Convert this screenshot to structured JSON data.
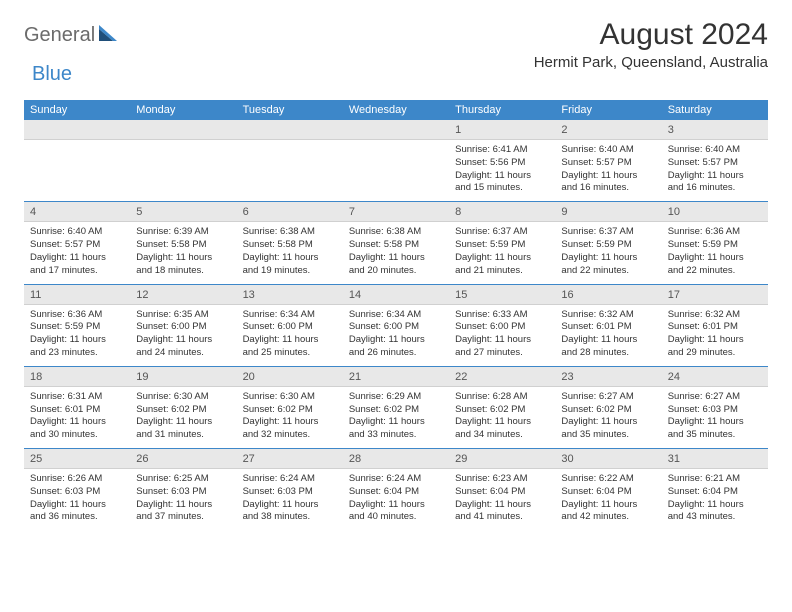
{
  "brand": {
    "part1": "General",
    "part2": "Blue"
  },
  "title": "August 2024",
  "location": "Hermit Park, Queensland, Australia",
  "colors": {
    "accent": "#3d87c9",
    "stripe": "#e8e8e8",
    "text": "#333333",
    "muted": "#6b6b6b",
    "divider": "#3d87c9"
  },
  "weekdays": [
    "Sunday",
    "Monday",
    "Tuesday",
    "Wednesday",
    "Thursday",
    "Friday",
    "Saturday"
  ],
  "weeks": [
    [
      {
        "num": "",
        "lines": []
      },
      {
        "num": "",
        "lines": []
      },
      {
        "num": "",
        "lines": []
      },
      {
        "num": "",
        "lines": []
      },
      {
        "num": "1",
        "lines": [
          "Sunrise: 6:41 AM",
          "Sunset: 5:56 PM",
          "Daylight: 11 hours",
          "and 15 minutes."
        ]
      },
      {
        "num": "2",
        "lines": [
          "Sunrise: 6:40 AM",
          "Sunset: 5:57 PM",
          "Daylight: 11 hours",
          "and 16 minutes."
        ]
      },
      {
        "num": "3",
        "lines": [
          "Sunrise: 6:40 AM",
          "Sunset: 5:57 PM",
          "Daylight: 11 hours",
          "and 16 minutes."
        ]
      }
    ],
    [
      {
        "num": "4",
        "lines": [
          "Sunrise: 6:40 AM",
          "Sunset: 5:57 PM",
          "Daylight: 11 hours",
          "and 17 minutes."
        ]
      },
      {
        "num": "5",
        "lines": [
          "Sunrise: 6:39 AM",
          "Sunset: 5:58 PM",
          "Daylight: 11 hours",
          "and 18 minutes."
        ]
      },
      {
        "num": "6",
        "lines": [
          "Sunrise: 6:38 AM",
          "Sunset: 5:58 PM",
          "Daylight: 11 hours",
          "and 19 minutes."
        ]
      },
      {
        "num": "7",
        "lines": [
          "Sunrise: 6:38 AM",
          "Sunset: 5:58 PM",
          "Daylight: 11 hours",
          "and 20 minutes."
        ]
      },
      {
        "num": "8",
        "lines": [
          "Sunrise: 6:37 AM",
          "Sunset: 5:59 PM",
          "Daylight: 11 hours",
          "and 21 minutes."
        ]
      },
      {
        "num": "9",
        "lines": [
          "Sunrise: 6:37 AM",
          "Sunset: 5:59 PM",
          "Daylight: 11 hours",
          "and 22 minutes."
        ]
      },
      {
        "num": "10",
        "lines": [
          "Sunrise: 6:36 AM",
          "Sunset: 5:59 PM",
          "Daylight: 11 hours",
          "and 22 minutes."
        ]
      }
    ],
    [
      {
        "num": "11",
        "lines": [
          "Sunrise: 6:36 AM",
          "Sunset: 5:59 PM",
          "Daylight: 11 hours",
          "and 23 minutes."
        ]
      },
      {
        "num": "12",
        "lines": [
          "Sunrise: 6:35 AM",
          "Sunset: 6:00 PM",
          "Daylight: 11 hours",
          "and 24 minutes."
        ]
      },
      {
        "num": "13",
        "lines": [
          "Sunrise: 6:34 AM",
          "Sunset: 6:00 PM",
          "Daylight: 11 hours",
          "and 25 minutes."
        ]
      },
      {
        "num": "14",
        "lines": [
          "Sunrise: 6:34 AM",
          "Sunset: 6:00 PM",
          "Daylight: 11 hours",
          "and 26 minutes."
        ]
      },
      {
        "num": "15",
        "lines": [
          "Sunrise: 6:33 AM",
          "Sunset: 6:00 PM",
          "Daylight: 11 hours",
          "and 27 minutes."
        ]
      },
      {
        "num": "16",
        "lines": [
          "Sunrise: 6:32 AM",
          "Sunset: 6:01 PM",
          "Daylight: 11 hours",
          "and 28 minutes."
        ]
      },
      {
        "num": "17",
        "lines": [
          "Sunrise: 6:32 AM",
          "Sunset: 6:01 PM",
          "Daylight: 11 hours",
          "and 29 minutes."
        ]
      }
    ],
    [
      {
        "num": "18",
        "lines": [
          "Sunrise: 6:31 AM",
          "Sunset: 6:01 PM",
          "Daylight: 11 hours",
          "and 30 minutes."
        ]
      },
      {
        "num": "19",
        "lines": [
          "Sunrise: 6:30 AM",
          "Sunset: 6:02 PM",
          "Daylight: 11 hours",
          "and 31 minutes."
        ]
      },
      {
        "num": "20",
        "lines": [
          "Sunrise: 6:30 AM",
          "Sunset: 6:02 PM",
          "Daylight: 11 hours",
          "and 32 minutes."
        ]
      },
      {
        "num": "21",
        "lines": [
          "Sunrise: 6:29 AM",
          "Sunset: 6:02 PM",
          "Daylight: 11 hours",
          "and 33 minutes."
        ]
      },
      {
        "num": "22",
        "lines": [
          "Sunrise: 6:28 AM",
          "Sunset: 6:02 PM",
          "Daylight: 11 hours",
          "and 34 minutes."
        ]
      },
      {
        "num": "23",
        "lines": [
          "Sunrise: 6:27 AM",
          "Sunset: 6:02 PM",
          "Daylight: 11 hours",
          "and 35 minutes."
        ]
      },
      {
        "num": "24",
        "lines": [
          "Sunrise: 6:27 AM",
          "Sunset: 6:03 PM",
          "Daylight: 11 hours",
          "and 35 minutes."
        ]
      }
    ],
    [
      {
        "num": "25",
        "lines": [
          "Sunrise: 6:26 AM",
          "Sunset: 6:03 PM",
          "Daylight: 11 hours",
          "and 36 minutes."
        ]
      },
      {
        "num": "26",
        "lines": [
          "Sunrise: 6:25 AM",
          "Sunset: 6:03 PM",
          "Daylight: 11 hours",
          "and 37 minutes."
        ]
      },
      {
        "num": "27",
        "lines": [
          "Sunrise: 6:24 AM",
          "Sunset: 6:03 PM",
          "Daylight: 11 hours",
          "and 38 minutes."
        ]
      },
      {
        "num": "28",
        "lines": [
          "Sunrise: 6:24 AM",
          "Sunset: 6:04 PM",
          "Daylight: 11 hours",
          "and 40 minutes."
        ]
      },
      {
        "num": "29",
        "lines": [
          "Sunrise: 6:23 AM",
          "Sunset: 6:04 PM",
          "Daylight: 11 hours",
          "and 41 minutes."
        ]
      },
      {
        "num": "30",
        "lines": [
          "Sunrise: 6:22 AM",
          "Sunset: 6:04 PM",
          "Daylight: 11 hours",
          "and 42 minutes."
        ]
      },
      {
        "num": "31",
        "lines": [
          "Sunrise: 6:21 AM",
          "Sunset: 6:04 PM",
          "Daylight: 11 hours",
          "and 43 minutes."
        ]
      }
    ]
  ]
}
